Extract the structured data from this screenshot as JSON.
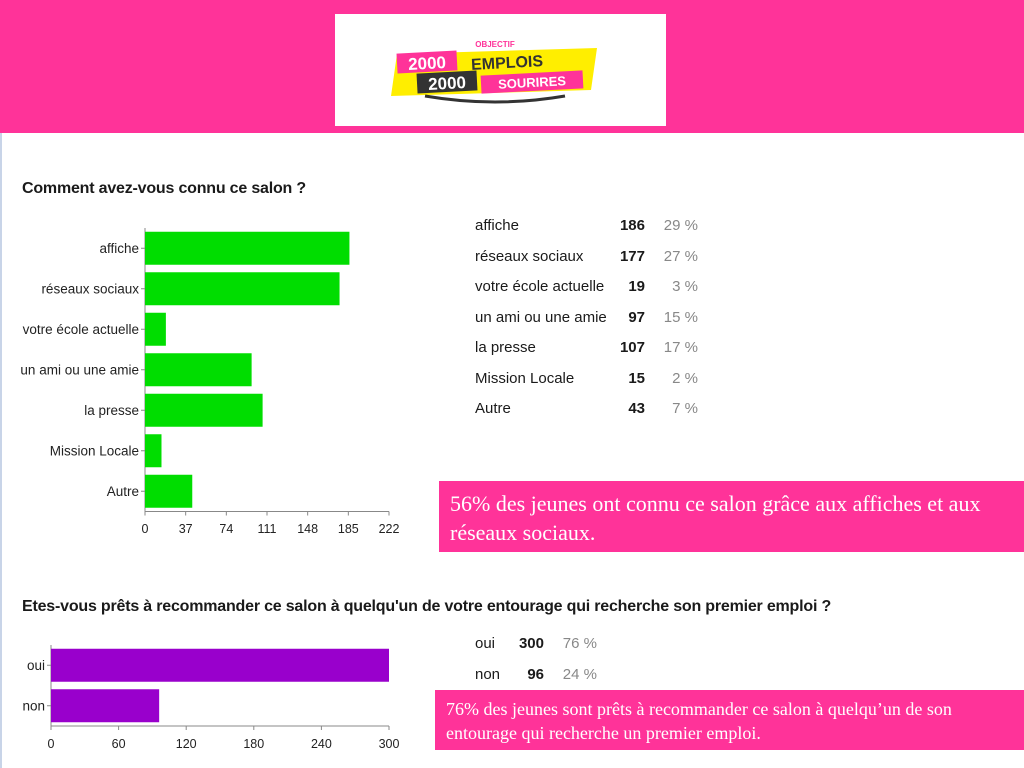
{
  "logo": {
    "top_word": "OBJECTIF",
    "line1_number": "2000",
    "line1_word": "EMPLOIS",
    "line2_number": "2000",
    "line2_word": "SOURIRES",
    "colors": {
      "pink": "#ff3399",
      "yellow": "#ffee00",
      "dark": "#333333"
    }
  },
  "colors": {
    "header": "#ff3399",
    "bar_q1": "#00dd00",
    "bar_q2": "#9900cc",
    "callout": "#ff3399"
  },
  "chart_data": [
    {
      "type": "bar",
      "orientation": "horizontal",
      "title": "Comment avez-vous connu ce salon ?",
      "categories": [
        "affiche",
        "réseaux sociaux",
        "votre école actuelle",
        "un ami ou une amie",
        "la presse",
        "Mission Locale",
        "Autre"
      ],
      "values": [
        186,
        177,
        19,
        97,
        107,
        15,
        43
      ],
      "percents": [
        "29 %",
        "27 %",
        "3 %",
        "15 %",
        "17 %",
        "2 %",
        "7 %"
      ],
      "xticks": [
        0,
        37,
        74,
        111,
        148,
        185,
        222
      ],
      "xlim": [
        0,
        222
      ],
      "color": "#00dd00"
    },
    {
      "type": "bar",
      "orientation": "horizontal",
      "title": "Etes-vous prêts à recommander ce salon à quelqu'un de votre entourage qui recherche son premier emploi ?",
      "categories": [
        "oui",
        "non"
      ],
      "values": [
        300,
        96
      ],
      "percents": [
        "76 %",
        "24 %"
      ],
      "xticks": [
        0,
        60,
        120,
        180,
        240,
        300
      ],
      "xlim": [
        0,
        300
      ],
      "color": "#9900cc"
    }
  ],
  "callouts": {
    "q1": "56% des jeunes ont connu ce salon grâce aux affiches et aux réseaux sociaux.",
    "q2": "76% des jeunes sont prêts à recommander ce salon à quelqu’un de son entourage qui recherche un premier emploi."
  }
}
